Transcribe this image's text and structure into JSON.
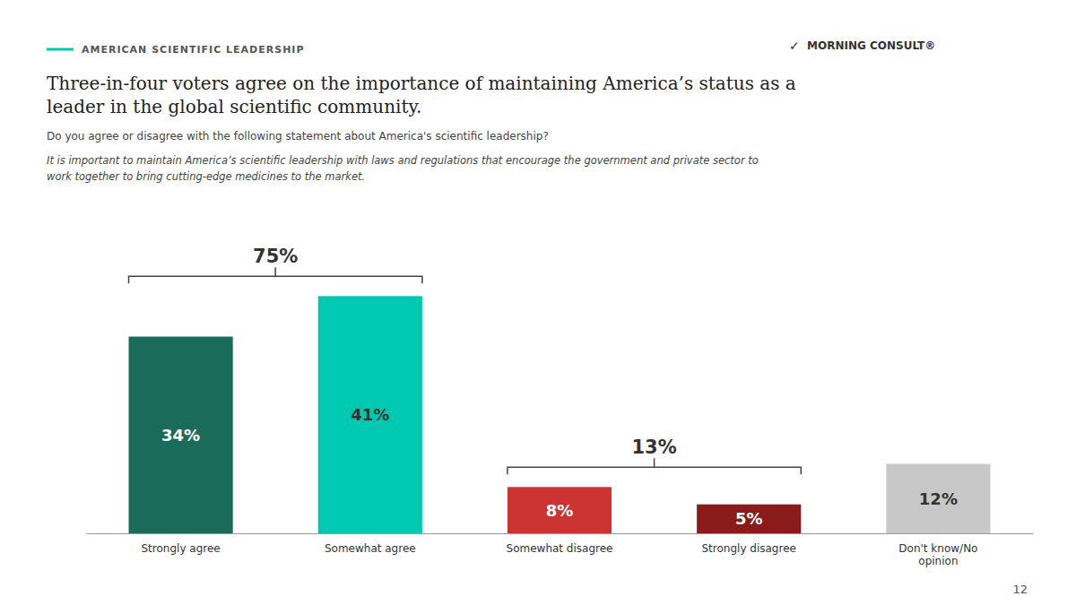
{
  "chart_data": {
    "type": "bar",
    "title": [
      "Three-in-four voters agree on the importance of maintaining America’s status as a",
      "leader in the global scientific community."
    ],
    "subtitle": "Do you agree or disagree with the following statement about America's scientific leadership?",
    "categories": [
      "Strongly agree",
      "Somewhat agree",
      "Somewhat disagree",
      "Strongly disagree",
      "Don't know/No\nopinion"
    ],
    "values": [
      34,
      41,
      8,
      5,
      12
    ],
    "value_labels": [
      "34%",
      "41%",
      "8%",
      "5%",
      "12%"
    ],
    "data_labels": true,
    "colors": [
      "#1a6b5a",
      "#00c9b1",
      "#cc3333",
      "#8b1a1a",
      "#c8c8c8"
    ],
    "ylim": [
      0,
      55
    ],
    "tick_labels": "x",
    "annotations": [
      {
        "text": "AMERICAN SCIENTIFIC LEADERSHIP"
      },
      {
        "text": "It is important to maintain America’s scientific leadership with laws and regulations that encourage the government and private sector to"
      },
      {
        "text": "work together to bring cutting-edge medicines to the market."
      },
      {
        "text": "✓"
      },
      {
        "text": "MORNING CONSULT®"
      },
      {
        "text": "12"
      },
      {
        "text": "75%",
        "categories": [
          "Strongly agree",
          "Somewhat agree"
        ]
      },
      {
        "text": "13%",
        "categories": [
          "Somewhat disagree",
          "Strongly disagree"
        ]
      }
    ]
  }
}
